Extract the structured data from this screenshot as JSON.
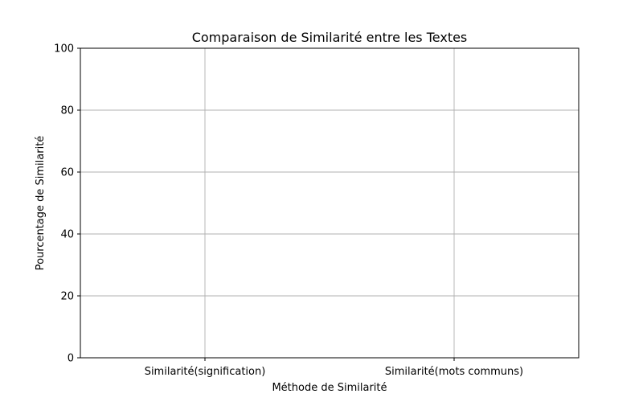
{
  "chart_data": {
    "type": "bar",
    "title": "Comparaison de Similarité entre les Textes",
    "xlabel": "Méthode de Similarité",
    "ylabel": "Pourcentage de Similarité",
    "categories": [
      "Similarité(signification)",
      "Similarité(mots communs)"
    ],
    "ylim": [
      0,
      100
    ],
    "yticks": [
      0,
      20,
      40,
      60,
      80,
      100
    ],
    "grid": true
  }
}
